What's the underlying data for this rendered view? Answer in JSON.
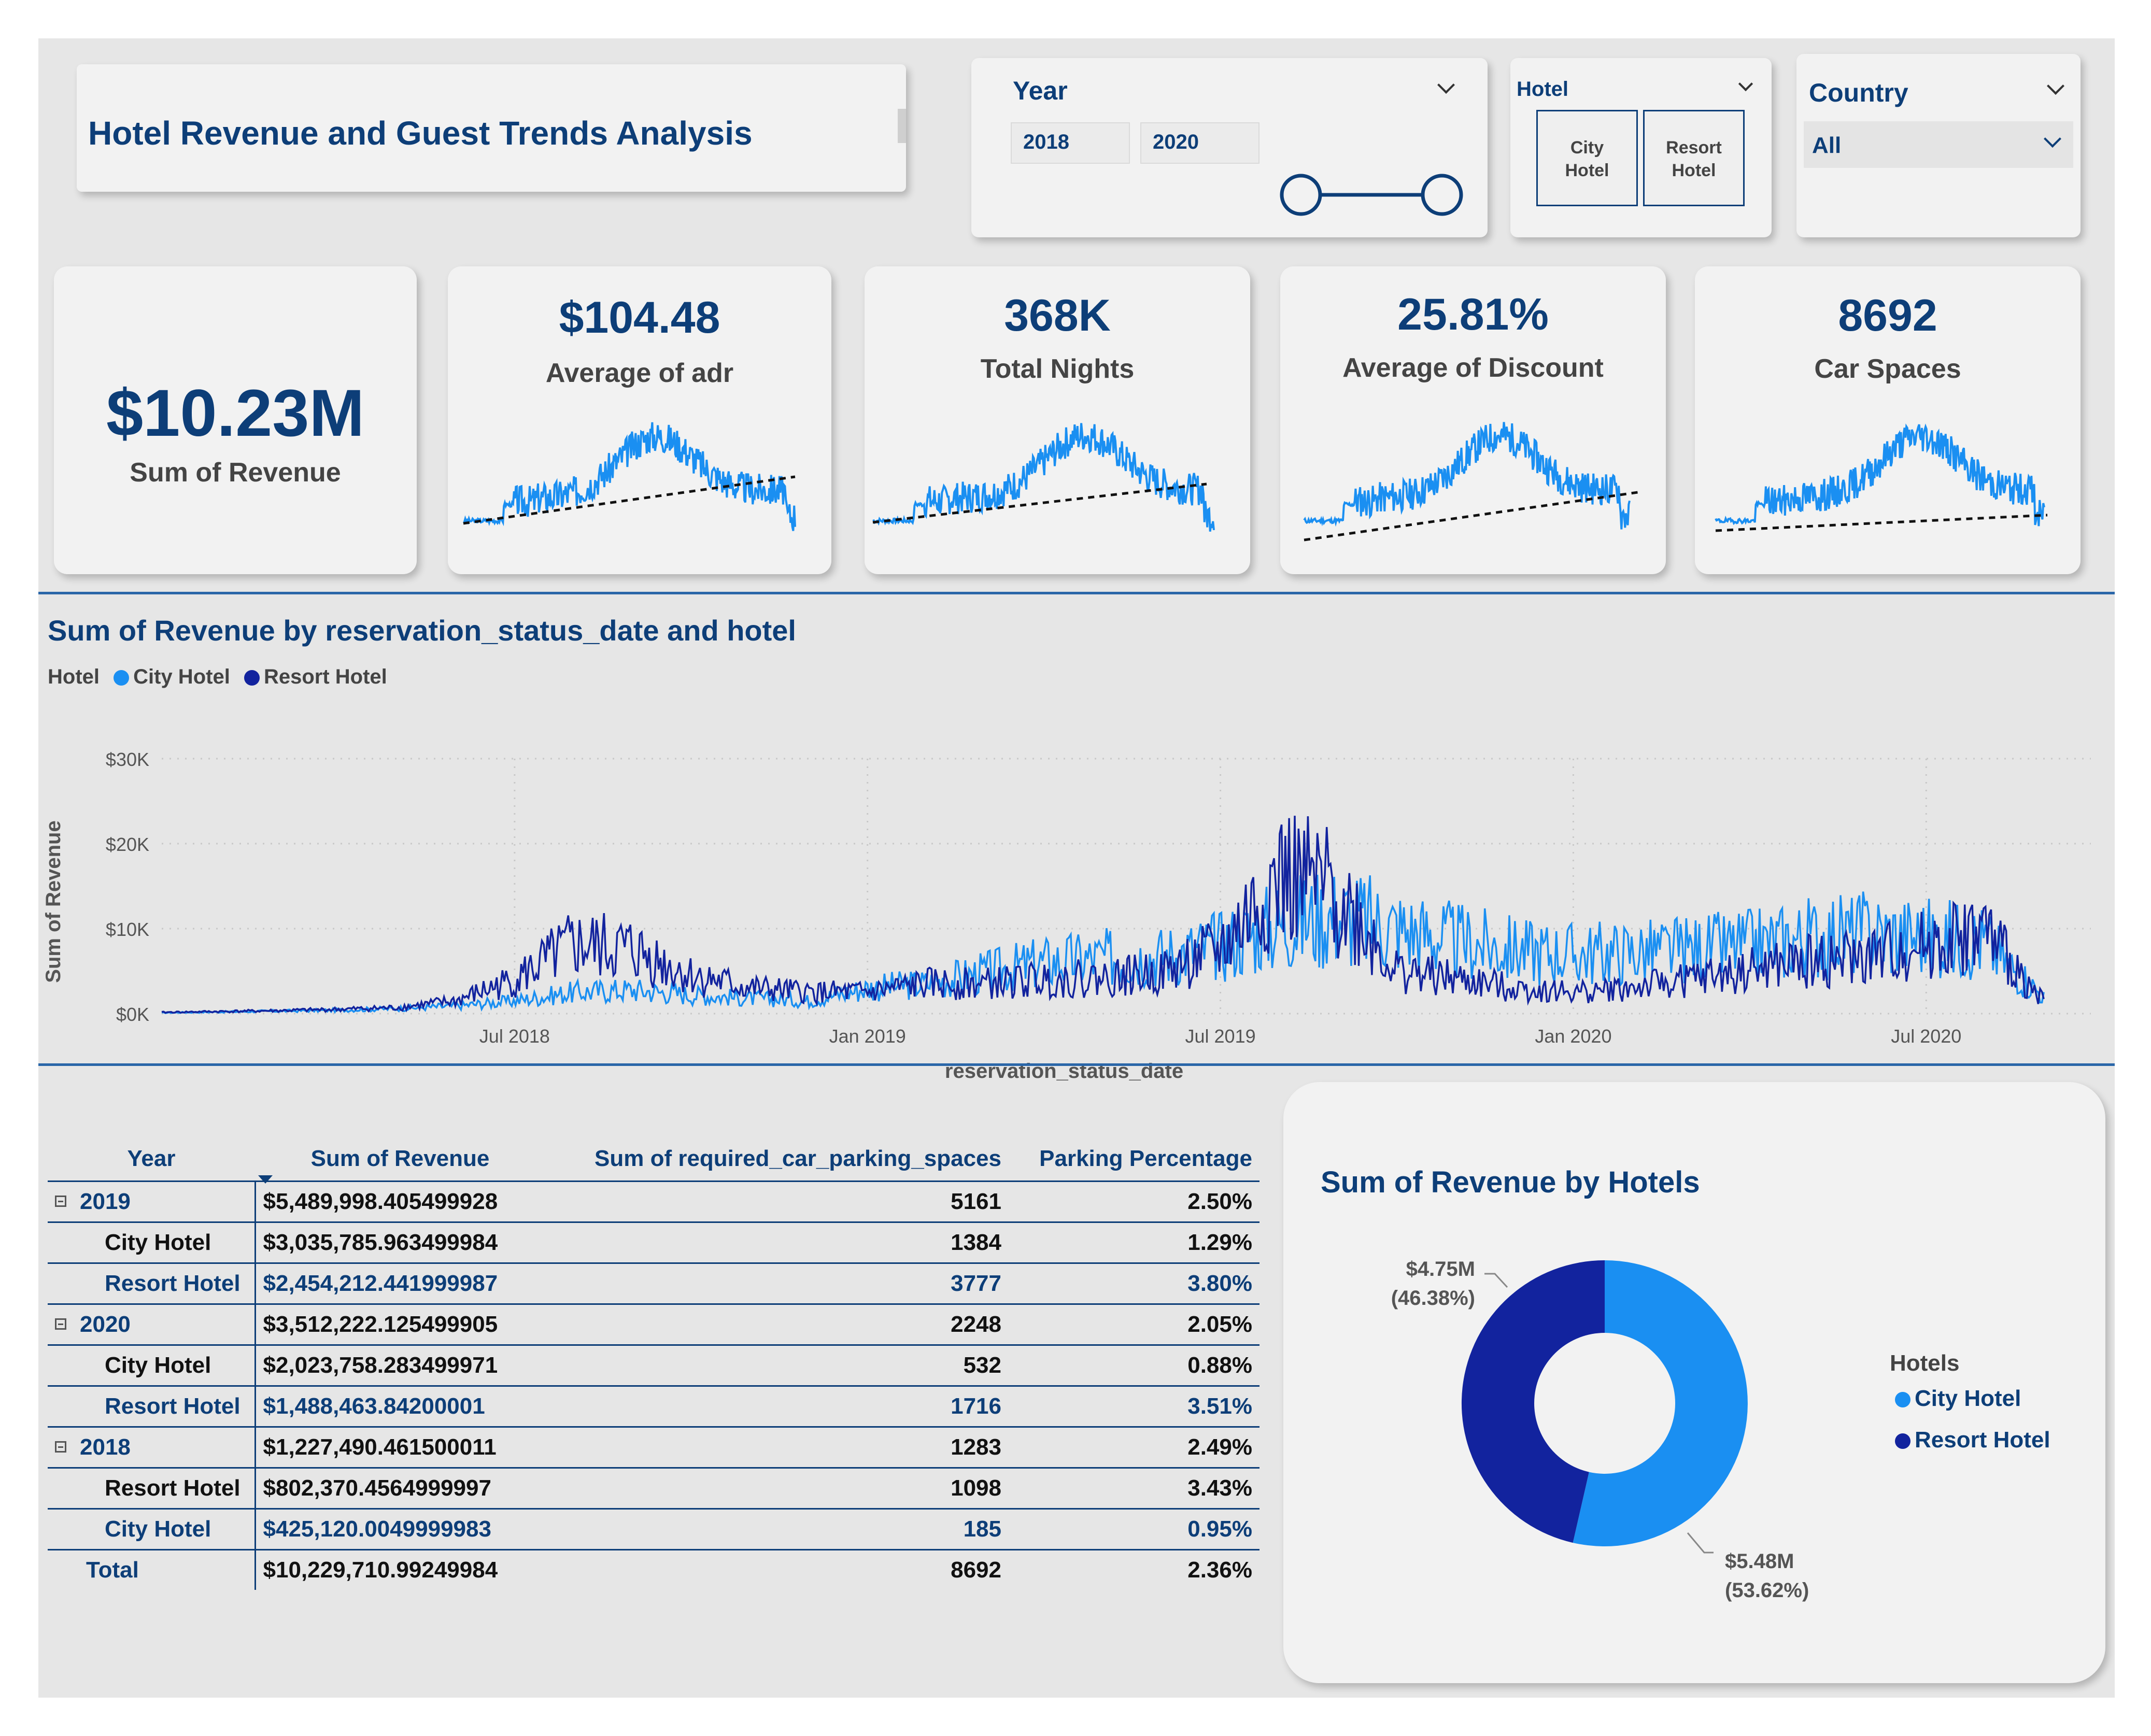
{
  "header": {
    "title": "Hotel Revenue and Guest Trends Analysis"
  },
  "slicers": {
    "year": {
      "label": "Year",
      "start": "2018",
      "end": "2020",
      "range": [
        2018,
        2020
      ]
    },
    "hotel": {
      "label": "Hotel",
      "options": [
        "City Hotel",
        "Resort Hotel"
      ],
      "option_lines": [
        [
          "City",
          "Hotel"
        ],
        [
          "Resort",
          "Hotel"
        ]
      ]
    },
    "country": {
      "label": "Country",
      "selected": "All"
    }
  },
  "kpis": [
    {
      "value": "$10.23M",
      "label": "Sum of Revenue"
    },
    {
      "value": "$104.48",
      "label": "Average of adr"
    },
    {
      "value": "368K",
      "label": "Total Nights"
    },
    {
      "value": "25.81%",
      "label": "Average of Discount"
    },
    {
      "value": "8692",
      "label": "Car Spaces"
    }
  ],
  "colors": {
    "navy": "#0d3e78",
    "city": "#1a8ff2",
    "resort": "#12239e",
    "bg": "#e6e6e6",
    "card": "#f2f2f2"
  },
  "chart_data": [
    {
      "type": "line",
      "title": "Sum of Revenue by reservation_status_date and hotel",
      "xlabel": "reservation_status_date",
      "ylabel": "Sum of Revenue",
      "legend_title": "Hotel",
      "legend_position": "top-left",
      "grid": true,
      "x_ticks": [
        "Jul 2018",
        "Jan 2019",
        "Jul 2019",
        "Jan 2020",
        "Jul 2020"
      ],
      "y_ticks": [
        "$0K",
        "$10K",
        "$20K",
        "$30K"
      ],
      "ylim": [
        0,
        30000
      ],
      "x": [
        "2018-01",
        "2018-02",
        "2018-03",
        "2018-04",
        "2018-05",
        "2018-06",
        "2018-07",
        "2018-08",
        "2018-09",
        "2018-10",
        "2018-11",
        "2018-12",
        "2019-01",
        "2019-02",
        "2019-03",
        "2019-04",
        "2019-05",
        "2019-06",
        "2019-07",
        "2019-08",
        "2019-09",
        "2019-10",
        "2019-11",
        "2019-12",
        "2020-01",
        "2020-02",
        "2020-03",
        "2020-04",
        "2020-05",
        "2020-06",
        "2020-07",
        "2020-08",
        "2020-09"
      ],
      "series": [
        {
          "name": "City Hotel",
          "color": "#1a8ff2",
          "values": [
            100,
            200,
            300,
            400,
            600,
            900,
            1500,
            2500,
            2800,
            2200,
            1800,
            1500,
            3000,
            3500,
            4800,
            6000,
            6500,
            6800,
            8000,
            10500,
            11500,
            10000,
            8500,
            7500,
            7000,
            7200,
            7500,
            8000,
            9000,
            9500,
            9000,
            8500,
            2000
          ]
        },
        {
          "name": "Resort Hotel",
          "color": "#12239e",
          "values": [
            150,
            250,
            350,
            500,
            700,
            1500,
            4000,
            8000,
            7500,
            4500,
            3000,
            2500,
            2500,
            3500,
            3500,
            4000,
            4200,
            4800,
            7500,
            16000,
            14000,
            5000,
            4000,
            3000,
            2500,
            3000,
            4000,
            5000,
            6000,
            6500,
            8000,
            9500,
            1500
          ]
        }
      ]
    },
    {
      "type": "pie",
      "title": "Sum of Revenue by Hotels",
      "legend_title": "Hotels",
      "legend_position": "right",
      "categories": [
        "City Hotel",
        "Resort Hotel"
      ],
      "values": [
        5.48,
        4.75
      ],
      "percent": [
        53.62,
        46.38
      ],
      "labels": [
        {
          "value": "$5.48M",
          "pct": "(53.62%)"
        },
        {
          "value": "$4.75M",
          "pct": "(46.38%)"
        }
      ],
      "colors": [
        "#1a8ff2",
        "#12239e"
      ]
    },
    {
      "type": "table",
      "columns": [
        "Year",
        "Sum of Revenue",
        "Sum of required_car_parking_spaces",
        "Parking Percentage"
      ],
      "rows": [
        {
          "level": 0,
          "label": "2019",
          "revenue": "$5,489,998.405499928",
          "spaces": "5161",
          "pct": "2.50%"
        },
        {
          "level": 1,
          "label": "City Hotel",
          "revenue": "$3,035,785.963499984",
          "spaces": "1384",
          "pct": "1.29%"
        },
        {
          "level": 1,
          "label": "Resort Hotel",
          "revenue": "$2,454,212.441999987",
          "spaces": "3777",
          "pct": "3.80%"
        },
        {
          "level": 0,
          "label": "2020",
          "revenue": "$3,512,222.125499905",
          "spaces": "2248",
          "pct": "2.05%"
        },
        {
          "level": 1,
          "label": "City Hotel",
          "revenue": "$2,023,758.283499971",
          "spaces": "532",
          "pct": "0.88%"
        },
        {
          "level": 1,
          "label": "Resort Hotel",
          "revenue": "$1,488,463.84200001",
          "spaces": "1716",
          "pct": "3.51%"
        },
        {
          "level": 0,
          "label": "2018",
          "revenue": "$1,227,490.461500011",
          "spaces": "1283",
          "pct": "2.49%"
        },
        {
          "level": 1,
          "label": "Resort Hotel",
          "revenue": "$802,370.4564999997",
          "spaces": "1098",
          "pct": "3.43%"
        },
        {
          "level": 1,
          "label": "City Hotel",
          "revenue": "$425,120.0049999983",
          "spaces": "185",
          "pct": "0.95%"
        },
        {
          "level": -1,
          "label": "Total",
          "revenue": "$10,229,710.99249984",
          "spaces": "8692",
          "pct": "2.36%"
        }
      ]
    }
  ]
}
